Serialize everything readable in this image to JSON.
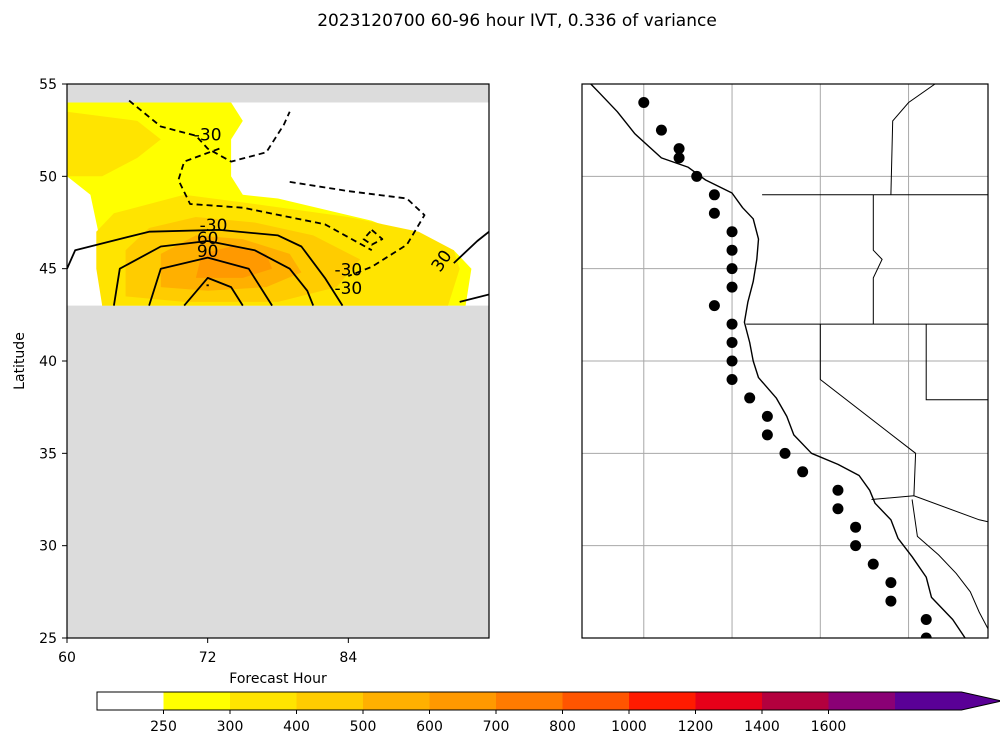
{
  "chart_data": [
    {
      "type": "contour",
      "title": "2023120700 60-96 hour IVT, 0.336 of variance",
      "xlabel": "Forecast Hour",
      "ylabel": "Latitude",
      "xlim": [
        60,
        96
      ],
      "ylim": [
        25,
        55
      ],
      "xticks": [
        "60",
        "72",
        "84"
      ],
      "yticks": [
        "25",
        "30",
        "35",
        "40",
        "45",
        "50",
        "55"
      ],
      "grid": false,
      "missing_regions": [
        {
          "x": [
            60,
            96
          ],
          "y": [
            25,
            43
          ]
        },
        {
          "x": [
            60,
            96
          ],
          "y": [
            54,
            55
          ]
        }
      ],
      "filled_contours": [
        {
          "level": 250,
          "color": "#ffff00",
          "polygon": [
            [
              60,
              43
            ],
            [
              63,
              43
            ],
            [
              63,
              46
            ],
            [
              62,
              49
            ],
            [
              60,
              50
            ],
            [
              60,
              54
            ],
            [
              60,
              54
            ],
            [
              74,
              54
            ],
            [
              75,
              53
            ],
            [
              74,
              52
            ],
            [
              74,
              50
            ],
            [
              75,
              49
            ],
            [
              78,
              48.8
            ],
            [
              82,
              48.2
            ],
            [
              86,
              47.6
            ],
            [
              90,
              46.6
            ],
            [
              93,
              46
            ],
            [
              94.5,
              45
            ],
            [
              94,
              43
            ],
            [
              63,
              43
            ]
          ]
        },
        {
          "level": 300,
          "color": "#ffe400",
          "polygon": [
            [
              63,
              43
            ],
            [
              62.5,
              45
            ],
            [
              62.5,
              47
            ],
            [
              64,
              48
            ],
            [
              70,
              49
            ],
            [
              76,
              48.5
            ],
            [
              84,
              47.8
            ],
            [
              90,
              47
            ],
            [
              93,
              46
            ],
            [
              93.5,
              45
            ],
            [
              92.5,
              43
            ]
          ]
        },
        {
          "level": 300,
          "color": "#ffe400",
          "polygon": [
            [
              60,
              50
            ],
            [
              60,
              53.5
            ],
            [
              66,
              53
            ],
            [
              68,
              52
            ],
            [
              66,
              51
            ],
            [
              63,
              50
            ]
          ]
        },
        {
          "level": 400,
          "color": "#ffcc00",
          "polygon": [
            [
              65,
              43.5
            ],
            [
              65,
              46
            ],
            [
              67,
              47.2
            ],
            [
              71,
              47.8
            ],
            [
              76,
              47.5
            ],
            [
              81,
              46.8
            ],
            [
              85,
              45.5
            ],
            [
              83,
              44
            ],
            [
              78,
              43.2
            ],
            [
              70,
              43.2
            ]
          ]
        },
        {
          "level": 500,
          "color": "#ffb000",
          "polygon": [
            [
              68,
              44
            ],
            [
              68,
              45.8
            ],
            [
              71,
              46.8
            ],
            [
              75,
              46.6
            ],
            [
              79,
              45.8
            ],
            [
              80,
              44.8
            ],
            [
              77,
              44
            ],
            [
              72,
              43.8
            ]
          ]
        },
        {
          "level": 600,
          "color": "#ff9900",
          "polygon": [
            [
              71,
              44.5
            ],
            [
              71.5,
              45.8
            ],
            [
              74,
              46.2
            ],
            [
              77,
              45.8
            ],
            [
              77.5,
              45
            ],
            [
              75,
              44.5
            ]
          ]
        }
      ],
      "line_contours": [
        {
          "level": 30,
          "style": "solid",
          "points": [
            [
              60,
              45
            ],
            [
              60.7,
              46
            ],
            [
              67,
              47
            ],
            [
              73,
              47.1
            ],
            [
              78,
              46.8
            ],
            [
              80,
              46.2
            ],
            [
              82,
              44.5
            ],
            [
              83.5,
              43
            ]
          ]
        },
        {
          "level": 30,
          "style": "solid",
          "points": [
            [
              93.5,
              43.2
            ],
            [
              96,
              43.6
            ]
          ]
        },
        {
          "level": 30,
          "style": "solid",
          "points": [
            [
              93,
              45.3
            ],
            [
              95,
              46.5
            ],
            [
              96,
              47
            ]
          ]
        },
        {
          "level": 60,
          "style": "solid",
          "points": [
            [
              64,
              43
            ],
            [
              64.5,
              45
            ],
            [
              68,
              46.2
            ],
            [
              72,
              46.5
            ],
            [
              76,
              46
            ],
            [
              79,
              45
            ],
            [
              80.5,
              43.8
            ],
            [
              81,
              43
            ]
          ]
        },
        {
          "level": 90,
          "style": "solid",
          "points": [
            [
              67,
              43
            ],
            [
              68,
              45
            ],
            [
              72,
              45.6
            ],
            [
              75.5,
              45
            ],
            [
              77.5,
              43
            ]
          ]
        },
        {
          "level": 120,
          "style": "solid",
          "points": [
            [
              70,
              43
            ],
            [
              72,
              44.5
            ],
            [
              74,
              44
            ],
            [
              75,
              43
            ]
          ]
        },
        {
          "level": 150,
          "style": "solid",
          "points": [
            [
              71.9,
              44.1
            ],
            [
              72.1,
              44.1
            ]
          ]
        },
        {
          "level": -30,
          "style": "dashed",
          "points": [
            [
              65.3,
              54.1
            ],
            [
              68,
              52.7
            ],
            [
              71,
              52.2
            ],
            [
              72,
              51.5
            ],
            [
              74,
              50.8
            ],
            [
              77,
              51.3
            ],
            [
              78.5,
              52.8
            ],
            [
              79,
              53.5
            ]
          ]
        },
        {
          "level": -30,
          "style": "dashed",
          "points": [
            [
              73,
              51.5
            ],
            [
              70,
              50.8
            ],
            [
              69.5,
              49.8
            ],
            [
              70.5,
              48.5
            ],
            [
              75,
              48.3
            ],
            [
              82,
              47.4
            ],
            [
              86,
              46
            ]
          ]
        },
        {
          "level": -30,
          "style": "dashed",
          "points": [
            [
              79,
              49.7
            ],
            [
              84,
              49.2
            ],
            [
              89,
              48.8
            ],
            [
              90.5,
              47.9
            ],
            [
              89,
              46.3
            ],
            [
              86,
              45.1
            ],
            [
              84,
              44.6
            ]
          ]
        },
        {
          "level": -30,
          "style": "dashed",
          "points": [
            [
              86,
              47.1
            ],
            [
              86.9,
              46.6
            ],
            [
              86,
              46.3
            ],
            [
              85.3,
              46.6
            ],
            [
              86,
              47.1
            ]
          ]
        }
      ],
      "line_labels": [
        {
          "text": "-30",
          "x": 72,
          "y": 52.2
        },
        {
          "text": "-30",
          "x": 72.5,
          "y": 47.3
        },
        {
          "text": "60",
          "x": 72,
          "y": 46.6
        },
        {
          "text": "90",
          "x": 72,
          "y": 45.9
        },
        {
          "text": "-30",
          "x": 84,
          "y": 44.9
        },
        {
          "text": "-30",
          "x": 84,
          "y": 43.9
        },
        {
          "text": "30",
          "x": 92,
          "y": 45.4
        }
      ]
    },
    {
      "type": "map",
      "region": "US West Coast",
      "lon_range": [
        -133.5,
        -110.5
      ],
      "lat_range": [
        25,
        55
      ],
      "gridlines_lon": [
        -130,
        -125,
        -120,
        -115
      ],
      "gridlines_lat": [
        30,
        35,
        40,
        45,
        50
      ],
      "coastline": [
        [
          -133,
          55
        ],
        [
          -132.5,
          54.5
        ],
        [
          -131.5,
          53.5
        ],
        [
          -130.5,
          52.3
        ],
        [
          -129,
          51
        ],
        [
          -127.5,
          50.5
        ],
        [
          -126.5,
          49.8
        ],
        [
          -125,
          49.1
        ],
        [
          -124.4,
          48.3
        ],
        [
          -123.8,
          47.7
        ],
        [
          -123.5,
          46.6
        ],
        [
          -123.6,
          45.5
        ],
        [
          -123.8,
          44.3
        ],
        [
          -124.1,
          43.2
        ],
        [
          -124.3,
          42.1
        ],
        [
          -124,
          41
        ],
        [
          -123.8,
          40
        ],
        [
          -123.5,
          39.1
        ],
        [
          -122.5,
          38
        ],
        [
          -121.9,
          37
        ],
        [
          -121.5,
          36
        ],
        [
          -120.5,
          35
        ],
        [
          -119,
          34.4
        ],
        [
          -117.8,
          33.8
        ],
        [
          -117.2,
          33
        ],
        [
          -116.9,
          32.3
        ],
        [
          -116,
          31.4
        ],
        [
          -115.6,
          30.4
        ],
        [
          -114.8,
          29.4
        ],
        [
          -114,
          28.3
        ],
        [
          -113.7,
          27.2
        ],
        [
          -112.5,
          26
        ],
        [
          -111.8,
          25
        ]
      ],
      "borders": [
        [
          [
            -123.3,
            49
          ],
          [
            -110.5,
            49
          ]
        ],
        [
          [
            -124.2,
            42
          ],
          [
            -110.5,
            42
          ]
        ],
        [
          [
            -117,
            49
          ],
          [
            -117,
            46
          ],
          [
            -116.5,
            45.5
          ],
          [
            -117,
            44.5
          ],
          [
            -117,
            42
          ]
        ],
        [
          [
            -120,
            42
          ],
          [
            -120,
            39
          ],
          [
            -114.6,
            35
          ],
          [
            -114.7,
            32.7
          ]
        ],
        [
          [
            -114,
            42
          ],
          [
            -114,
            37.9
          ],
          [
            -110.5,
            37.9
          ]
        ],
        [
          [
            -117.1,
            32.5
          ],
          [
            -114.7,
            32.7
          ],
          [
            -111,
            31.4
          ],
          [
            -110.5,
            31.3
          ]
        ],
        [
          [
            -114.8,
            32.5
          ],
          [
            -114.5,
            30.5
          ],
          [
            -113.3,
            29.5
          ],
          [
            -112.3,
            28.5
          ],
          [
            -111.5,
            27.5
          ],
          [
            -111,
            26.4
          ],
          [
            -110.5,
            25.5
          ]
        ],
        [
          [
            -116,
            49
          ],
          [
            -115.9,
            53
          ],
          [
            -115,
            54
          ],
          [
            -113.5,
            55
          ]
        ]
      ],
      "points": [
        [
          -130,
          54
        ],
        [
          -129,
          52.5
        ],
        [
          -128,
          51.5
        ],
        [
          -128,
          51
        ],
        [
          -127,
          50
        ],
        [
          -126,
          49
        ],
        [
          -126,
          48
        ],
        [
          -125,
          47
        ],
        [
          -125,
          46
        ],
        [
          -125,
          45
        ],
        [
          -125,
          44
        ],
        [
          -126,
          43
        ],
        [
          -125,
          42
        ],
        [
          -125,
          41
        ],
        [
          -125,
          40
        ],
        [
          -125,
          39
        ],
        [
          -124,
          38
        ],
        [
          -123,
          37
        ],
        [
          -123,
          36
        ],
        [
          -122,
          35
        ],
        [
          -121,
          34
        ],
        [
          -119,
          33
        ],
        [
          -119,
          32
        ],
        [
          -118,
          31
        ],
        [
          -118,
          30
        ],
        [
          -117,
          29
        ],
        [
          -116,
          28
        ],
        [
          -116,
          27
        ],
        [
          -114,
          26
        ],
        [
          -114,
          25
        ]
      ]
    },
    {
      "type": "colorbar",
      "levels": [
        250,
        300,
        400,
        500,
        600,
        700,
        800,
        1000,
        1200,
        1400,
        1600
      ],
      "tick_labels": [
        "250",
        "300",
        "400",
        "500",
        "600",
        "700",
        "800",
        "1000",
        "1200",
        "1400",
        "1600"
      ],
      "colors": [
        "#ffffff",
        "#ffff00",
        "#ffe400",
        "#ffcc00",
        "#ffb000",
        "#ff9900",
        "#ff7b00",
        "#ff5500",
        "#ff1b00",
        "#e60019",
        "#b3003e",
        "#8a0075",
        "#5a0096"
      ],
      "extend": "max"
    }
  ]
}
